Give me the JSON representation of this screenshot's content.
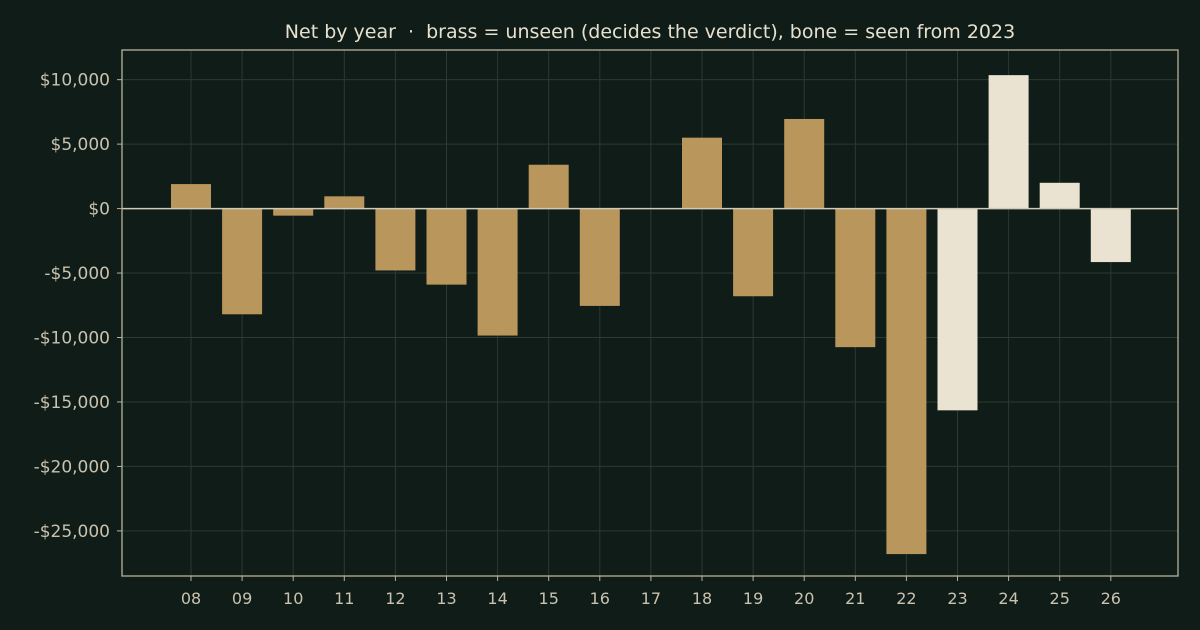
{
  "chart_data": {
    "type": "bar",
    "title": "Net by year  ·  brass = unseen (decides the verdict), bone = seen from 2023",
    "xlabel": "",
    "ylabel": "",
    "ylim": [
      -28500,
      12300
    ],
    "yticks": [
      10000,
      5000,
      0,
      -5000,
      -10000,
      -15000,
      -20000,
      -25000
    ],
    "ytick_labels": [
      "$10,000",
      "$5,000",
      "$0",
      "-$5,000",
      "-$10,000",
      "-$15,000",
      "-$20,000",
      "-$25,000"
    ],
    "grid": true,
    "categories": [
      "08",
      "09",
      "10",
      "11",
      "12",
      "13",
      "14",
      "15",
      "16",
      "17",
      "18",
      "19",
      "20",
      "21",
      "22",
      "23",
      "24",
      "25",
      "26"
    ],
    "series": [
      {
        "color": "#b8965c",
        "values": [
          1900,
          -8200,
          -550,
          950,
          -4800,
          -5900,
          -9850,
          3400,
          -7550,
          0,
          5500,
          -6800,
          6950,
          -10750,
          -26800,
          null,
          null,
          null,
          null
        ]
      },
      {
        "color": "#ebe3d2",
        "values": [
          null,
          null,
          null,
          null,
          null,
          null,
          null,
          null,
          null,
          null,
          null,
          null,
          null,
          null,
          null,
          -15650,
          10350,
          2000,
          -4150
        ]
      }
    ]
  }
}
